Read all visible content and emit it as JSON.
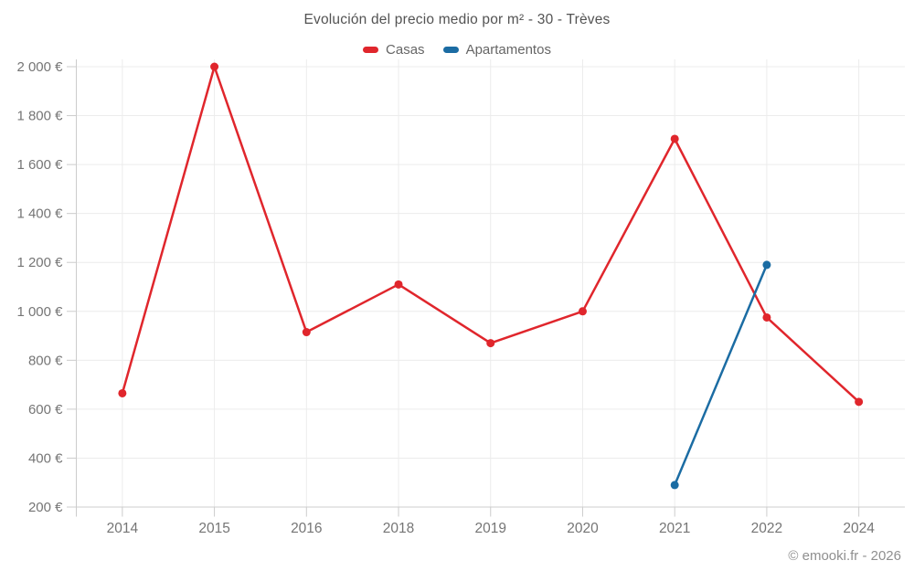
{
  "title": "Evolución del precio medio por m² - 30 - Trèves",
  "watermark": "© emooki.fr - 2026",
  "colors": {
    "casas": "#e0262c",
    "apartamentos": "#1b6ca3",
    "grid": "#ececec",
    "axis": "#cccccc",
    "axis_text": "#757575",
    "title_text": "#535353",
    "legend_text": "#666666",
    "watermark_text": "#8f8f8f",
    "background": "#ffffff"
  },
  "legend": {
    "items": [
      {
        "id": "casas",
        "label": "Casas",
        "color": "#e0262c"
      },
      {
        "id": "apartamentos",
        "label": "Apartamentos",
        "color": "#1b6ca3"
      }
    ]
  },
  "chart_data": {
    "type": "line",
    "title": "Evolución del precio medio por m² - 30 - Trèves",
    "categories": [
      "2014",
      "2015",
      "2016",
      "2018",
      "2019",
      "2020",
      "2021",
      "2022",
      "2024"
    ],
    "series": [
      {
        "name": "Casas",
        "color": "#e0262c",
        "values": [
          665,
          2000,
          915,
          1110,
          870,
          1000,
          1705,
          975,
          630
        ]
      },
      {
        "name": "Apartamentos",
        "color": "#1b6ca3",
        "values": [
          null,
          null,
          null,
          null,
          null,
          null,
          290,
          1190,
          null
        ]
      }
    ],
    "ylim": [
      200,
      2000
    ],
    "ytick_step": 200,
    "ytick_suffix": " €",
    "xlabel": "",
    "ylabel": "",
    "grid": true,
    "legend_position": "top",
    "marker_radius": 4.5,
    "line_width": 2.5
  }
}
